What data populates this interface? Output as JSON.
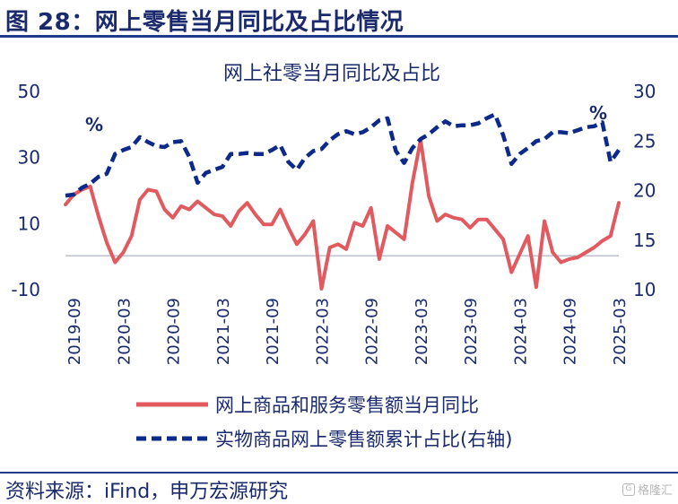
{
  "header": {
    "title": "图 28：网上零售当月同比及占比情况"
  },
  "footer": {
    "source": "资料来源：iFind，申万宏源研究",
    "watermark": "格隆汇"
  },
  "colors": {
    "navy": "#1a2a6c",
    "red_series": "#e05a5f",
    "blue_series": "#0d2a8a"
  },
  "chart_data": {
    "type": "line",
    "title": "网上社零当月同比及占比",
    "left_unit": "%",
    "right_unit": "%",
    "ylim_left": [
      -10,
      50
    ],
    "yticks_left": [
      -10,
      10,
      30,
      50
    ],
    "ylim_right": [
      10,
      30
    ],
    "yticks_right": [
      10,
      15,
      20,
      25,
      30
    ],
    "x_tick_labels": [
      "2019-09",
      "2020-03",
      "2020-09",
      "2021-03",
      "2021-09",
      "2022-03",
      "2022-09",
      "2023-03",
      "2023-09",
      "2024-03",
      "2024-09",
      "2025-03"
    ],
    "x": [
      "2019-08",
      "2019-09",
      "2019-10",
      "2019-11",
      "2019-12",
      "2020-01",
      "2020-02",
      "2020-03",
      "2020-04",
      "2020-05",
      "2020-06",
      "2020-07",
      "2020-08",
      "2020-09",
      "2020-10",
      "2020-11",
      "2020-12",
      "2021-01",
      "2021-02",
      "2021-03",
      "2021-04",
      "2021-05",
      "2021-06",
      "2021-07",
      "2021-08",
      "2021-09",
      "2021-10",
      "2021-11",
      "2021-12",
      "2022-01",
      "2022-02",
      "2022-03",
      "2022-04",
      "2022-05",
      "2022-06",
      "2022-07",
      "2022-08",
      "2022-09",
      "2022-10",
      "2022-11",
      "2022-12",
      "2023-01",
      "2023-02",
      "2023-03",
      "2023-04",
      "2023-05",
      "2023-06",
      "2023-07",
      "2023-08",
      "2023-09",
      "2023-10",
      "2023-11",
      "2023-12",
      "2024-01",
      "2024-02",
      "2024-03",
      "2024-04",
      "2024-05",
      "2024-06",
      "2024-07",
      "2024-08",
      "2024-09",
      "2024-10",
      "2024-11",
      "2024-12",
      "2025-01",
      "2025-02",
      "2025-03"
    ],
    "series": [
      {
        "name": "网上商品和服务零售额当月同比",
        "axis": "left",
        "style": "solid",
        "values": [
          15.5,
          18.5,
          20.0,
          21.0,
          12.0,
          4.0,
          -2.0,
          1.0,
          6.0,
          17.0,
          20.0,
          19.5,
          14.0,
          11.5,
          15.0,
          14.0,
          16.5,
          14.5,
          12.5,
          12.0,
          9.0,
          13.5,
          16.0,
          12.5,
          9.5,
          9.5,
          14.0,
          8.5,
          3.5,
          6.5,
          10.5,
          -10.0,
          2.5,
          3.5,
          2.0,
          10.0,
          9.0,
          14.5,
          -1.0,
          9.0,
          7.0,
          5.0,
          22.0,
          35.0,
          18.0,
          10.5,
          12.5,
          11.5,
          11.0,
          8.5,
          11.0,
          11.0,
          8.0,
          5.0,
          -5.0,
          0.5,
          6.0,
          -9.5,
          10.5,
          1.0,
          -2.0,
          -1.0,
          -0.5,
          1.0,
          2.5,
          4.5,
          6.0,
          16.0
        ]
      },
      {
        "name": "实物商品网上零售额累计占比(右轴)",
        "axis": "right",
        "style": "dashed",
        "values": [
          19.4,
          19.5,
          20.2,
          20.6,
          21.3,
          21.6,
          23.6,
          24.0,
          24.3,
          25.3,
          24.8,
          24.4,
          24.3,
          24.8,
          24.9,
          23.3,
          20.7,
          21.7,
          22.0,
          22.3,
          23.6,
          23.6,
          23.7,
          23.6,
          23.6,
          24.0,
          24.5,
          22.8,
          22.0,
          23.2,
          23.9,
          24.1,
          25.0,
          25.6,
          25.9,
          25.6,
          25.8,
          26.3,
          27.0,
          27.2,
          23.9,
          22.7,
          24.2,
          25.1,
          25.6,
          26.3,
          26.9,
          26.4,
          26.5,
          26.5,
          26.7,
          27.2,
          27.6,
          25.5,
          22.6,
          23.6,
          24.2,
          24.9,
          25.1,
          25.8,
          25.8,
          25.7,
          26.0,
          26.3,
          26.4,
          26.8,
          22.8,
          24.0
        ]
      }
    ],
    "grid": false,
    "legend_position": "bottom"
  }
}
